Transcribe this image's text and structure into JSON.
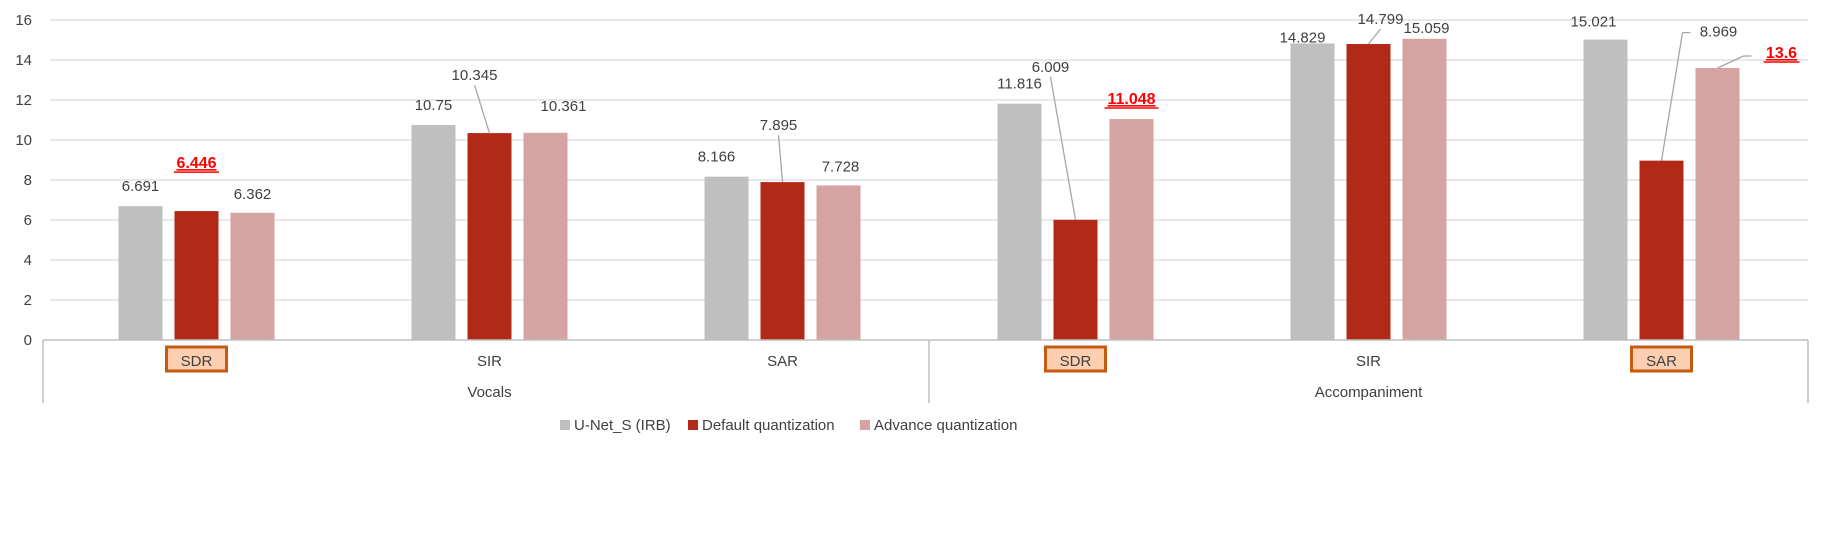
{
  "chart_data": {
    "type": "bar",
    "title": "",
    "xlabel": "",
    "ylabel": "",
    "ylim": [
      0,
      16
    ],
    "yticks": [
      0,
      2,
      4,
      6,
      8,
      10,
      12,
      14,
      16
    ],
    "grid": true,
    "legend_position": "bottom",
    "groups": [
      {
        "label": "Vocals",
        "categories": [
          "SDR",
          "SIR",
          "SAR"
        ]
      },
      {
        "label": "Accompaniment",
        "categories": [
          "SDR",
          "SIR",
          "SAR"
        ]
      }
    ],
    "highlighted_categories": [
      {
        "group": 0,
        "category": 0
      },
      {
        "group": 1,
        "category": 0
      },
      {
        "group": 1,
        "category": 2
      }
    ],
    "series": [
      {
        "name": "U-Net_S (IRB)",
        "color": "#bfbfbf",
        "values": [
          6.691,
          10.75,
          8.166,
          11.816,
          14.829,
          15.021
        ]
      },
      {
        "name": "Default quantization",
        "color": "#b22a17",
        "values": [
          6.446,
          10.345,
          7.895,
          6.009,
          14.799,
          8.969
        ]
      },
      {
        "name": "Advance quantization",
        "color": "#d4a3a2",
        "values": [
          6.362,
          10.361,
          7.728,
          11.048,
          15.059,
          13.6
        ]
      }
    ],
    "data_labels": [
      [
        "6.691",
        "6.446",
        "6.362"
      ],
      [
        "10.75",
        "10.345",
        "10.361"
      ],
      [
        "8.166",
        "7.895",
        "7.728"
      ],
      [
        "11.816",
        "6.009",
        "11.048"
      ],
      [
        "14.829",
        "14.799",
        "15.059"
      ],
      [
        "15.021",
        "8.969",
        "13.6"
      ]
    ],
    "emphasized_labels": [
      {
        "category_index": 0,
        "series_index": 1
      },
      {
        "category_index": 3,
        "series_index": 2
      },
      {
        "category_index": 5,
        "series_index": 2
      }
    ],
    "colors": {
      "axis": "#bfbfbf",
      "grid": "#d9d9d9",
      "text": "#404040",
      "emphasis_text": "#ff0000",
      "highlight_fill": "#fbcfb0",
      "highlight_border": "#c55a11"
    }
  }
}
